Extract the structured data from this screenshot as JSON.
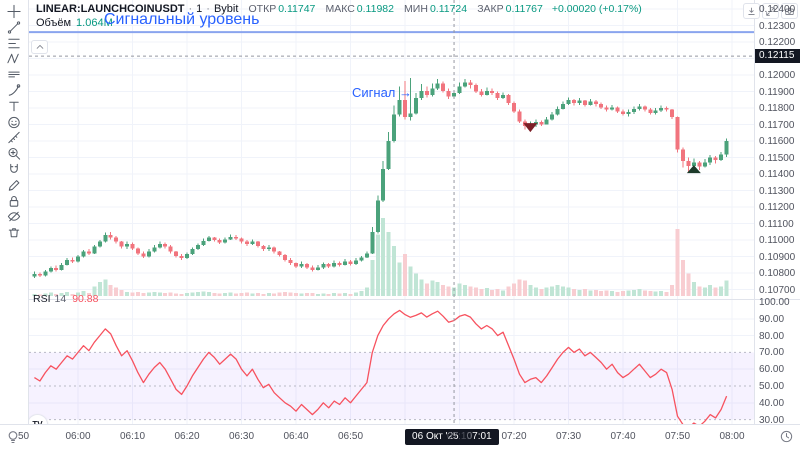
{
  "header": {
    "symbol": "LINEAR:LAUNCHCOINUSDT",
    "interval": "1",
    "exchange": "Bybit",
    "dot": "·",
    "o_label": "ОТКР",
    "o": "0.11747",
    "h_label": "МАКС",
    "h": "0.11982",
    "l_label": "МИН",
    "l": "0.11724",
    "c_label": "ЗАКР",
    "c": "0.11767",
    "change": "+0.00020 (+0.17%)"
  },
  "volume_row": {
    "label": "Объём",
    "value": "1.064M"
  },
  "rsi_row": {
    "label": "RSI",
    "period": "14",
    "value": "90.88"
  },
  "annotations": {
    "level_text": "Сигнальный уровень",
    "signal_text": "Сигнал →"
  },
  "watermark": {
    "text": "TV"
  },
  "sidebar": {
    "tools": [
      {
        "name": "crosshair"
      },
      {
        "name": "trend-line"
      },
      {
        "name": "fib-retracement"
      },
      {
        "name": "xabcd-pattern"
      },
      {
        "name": "long-position"
      },
      {
        "name": "brush"
      },
      {
        "name": "text"
      },
      {
        "name": "emoji"
      },
      {
        "name": "measure"
      },
      {
        "name": "zoom-in"
      },
      {
        "name": "magnet"
      },
      {
        "name": "drawing-mode"
      },
      {
        "name": "lock-all-drawings"
      },
      {
        "name": "hide-all-drawings"
      },
      {
        "name": "remove-all-drawings"
      }
    ]
  },
  "pane_buttons": [
    {
      "name": "pane-down"
    },
    {
      "name": "pane-maximize"
    },
    {
      "name": "pane-screenshot"
    }
  ],
  "price_axis": {
    "ticks": [
      "0.12400",
      "0.12300",
      "0.12200",
      "0.12000",
      "0.11900",
      "0.11800",
      "0.11700",
      "0.11600",
      "0.11500",
      "0.11400",
      "0.11300",
      "0.11200",
      "0.11100",
      "0.11000",
      "0.10900",
      "0.10800",
      "0.10700"
    ],
    "crosshair_label": "0.12115"
  },
  "rsi_axis": {
    "ticks": [
      "100.00",
      "90.00",
      "80.00",
      "70.00",
      "60.00",
      "50.00",
      "40.00",
      "30.00"
    ]
  },
  "time_axis": {
    "labels": [
      {
        "text": "50",
        "m": -10
      },
      {
        "text": "06:00",
        "m": 0
      },
      {
        "text": "06:10",
        "m": 10
      },
      {
        "text": "06:20",
        "m": 20
      },
      {
        "text": "06:30",
        "m": 30
      },
      {
        "text": "06:40",
        "m": 40
      },
      {
        "text": "06:50",
        "m": 50
      },
      {
        "text": "07:10",
        "m": 70
      },
      {
        "text": "07:20",
        "m": 80
      },
      {
        "text": "07:30",
        "m": 90
      },
      {
        "text": "07:40",
        "m": 100
      },
      {
        "text": "07:50",
        "m": 110
      },
      {
        "text": "08:00",
        "m": 120
      }
    ],
    "crosshair_date": "06 Окт '25",
    "crosshair_time": "07:01"
  },
  "colors": {
    "up": "#4ba27b",
    "down": "#f1747e",
    "vol_up": "#c0e5d5",
    "vol_down": "#f8cdd1",
    "accent": "#2962ff",
    "signal_line": "#8aa4ee",
    "rsi_line": "#f7525f",
    "rsi_band": "rgba(124,77,255,0.07)",
    "badge": "#131722",
    "axis_text": "#50535e",
    "grid": "#f0f3fa",
    "crosshair": "#9598a1",
    "header_green": "#089981",
    "sell_marker": "#7c1f27",
    "buy_marker": "#1d3b2a"
  },
  "chart_data": {
    "type": "candlestick",
    "interval": "1m",
    "start_time": "05:52",
    "end_time": "07:59",
    "open_policy": "previous_close",
    "first_open": 0.1078,
    "price_axis_range": [
      0.107,
      0.124
    ],
    "signal_level": 0.1226,
    "crosshair": {
      "date": "06 Окт '25",
      "time": "07:01",
      "minute_index": 69,
      "price": 0.12115,
      "rsi": 90.88,
      "volume_m": 1.064
    },
    "close": [
      0.10795,
      0.10785,
      0.1081,
      0.1083,
      0.1082,
      0.1085,
      0.1088,
      0.1087,
      0.109,
      0.1093,
      0.1092,
      0.1096,
      0.1099,
      0.1103,
      0.11015,
      0.1099,
      0.1096,
      0.10975,
      0.1095,
      0.1092,
      0.109,
      0.1093,
      0.10955,
      0.10975,
      0.1096,
      0.1093,
      0.10905,
      0.1089,
      0.10915,
      0.10945,
      0.1097,
      0.10995,
      0.11015,
      0.11,
      0.10985,
      0.11005,
      0.1102,
      0.1101,
      0.1099,
      0.10975,
      0.1099,
      0.10965,
      0.10945,
      0.10955,
      0.1093,
      0.1091,
      0.1088,
      0.1086,
      0.1084,
      0.10855,
      0.10835,
      0.1082,
      0.10835,
      0.10855,
      0.1084,
      0.1086,
      0.1085,
      0.1087,
      0.10855,
      0.10875,
      0.10895,
      0.1092,
      0.1105,
      0.1124,
      0.1143,
      0.116,
      0.1176,
      0.1185,
      0.11747,
      0.11767,
      0.1186,
      0.11905,
      0.1188,
      0.1192,
      0.1195,
      0.11905,
      0.1187,
      0.1189,
      0.1193,
      0.11955,
      0.1194,
      0.119,
      0.1188,
      0.11905,
      0.1189,
      0.1186,
      0.1188,
      0.1183,
      0.1178,
      0.1172,
      0.1169,
      0.117,
      0.11715,
      0.117,
      0.1173,
      0.1176,
      0.11795,
      0.11825,
      0.1185,
      0.1183,
      0.11845,
      0.1182,
      0.1184,
      0.11825,
      0.11805,
      0.1179,
      0.11805,
      0.1178,
      0.11765,
      0.11775,
      0.11795,
      0.1181,
      0.1179,
      0.1177,
      0.11785,
      0.118,
      0.1179,
      0.11745,
      0.1155,
      0.1148,
      0.1145,
      0.1147,
      0.11445,
      0.1147,
      0.115,
      0.11485,
      0.1152,
      0.116
    ],
    "high": [
      0.1081,
      0.10805,
      0.1082,
      0.1084,
      0.10845,
      0.1086,
      0.1089,
      0.10895,
      0.1091,
      0.1094,
      0.10945,
      0.1097,
      0.11,
      0.11045,
      0.1105,
      0.11025,
      0.10995,
      0.1099,
      0.10985,
      0.10955,
      0.1093,
      0.10945,
      0.1097,
      0.1099,
      0.10985,
      0.1097,
      0.10935,
      0.10915,
      0.10925,
      0.10955,
      0.1098,
      0.1101,
      0.11025,
      0.1102,
      0.1101,
      0.11015,
      0.11035,
      0.1103,
      0.11015,
      0.11,
      0.11005,
      0.10995,
      0.1097,
      0.1097,
      0.1096,
      0.10935,
      0.10915,
      0.1089,
      0.10865,
      0.1087,
      0.1086,
      0.10845,
      0.1085,
      0.10865,
      0.1086,
      0.10875,
      0.1087,
      0.10885,
      0.1088,
      0.1089,
      0.10905,
      0.1093,
      0.1108,
      0.1127,
      0.1148,
      0.11655,
      0.11815,
      0.1193,
      0.11965,
      0.11982,
      0.1189,
      0.11945,
      0.1193,
      0.1195,
      0.11975,
      0.1196,
      0.1192,
      0.1191,
      0.11955,
      0.11975,
      0.1197,
      0.1195,
      0.11915,
      0.11925,
      0.1192,
      0.119,
      0.11895,
      0.11885,
      0.1184,
      0.1179,
      0.1173,
      0.1172,
      0.1173,
      0.11725,
      0.11745,
      0.11775,
      0.1181,
      0.1184,
      0.11865,
      0.11855,
      0.1186,
      0.1185,
      0.11855,
      0.1185,
      0.11835,
      0.11815,
      0.1182,
      0.1181,
      0.1179,
      0.1179,
      0.1181,
      0.11825,
      0.11815,
      0.118,
      0.118,
      0.11815,
      0.1181,
      0.11795,
      0.1175,
      0.1156,
      0.115,
      0.11495,
      0.1148,
      0.1149,
      0.11515,
      0.1151,
      0.11535,
      0.11615
    ],
    "low": [
      0.1077,
      0.10775,
      0.1078,
      0.10805,
      0.1081,
      0.10815,
      0.10845,
      0.1086,
      0.10865,
      0.10895,
      0.1091,
      0.10915,
      0.10955,
      0.10985,
      0.11005,
      0.1098,
      0.1095,
      0.10945,
      0.1094,
      0.1091,
      0.1089,
      0.10895,
      0.10925,
      0.1095,
      0.1095,
      0.1092,
      0.10895,
      0.1088,
      0.10885,
      0.1091,
      0.1094,
      0.10965,
      0.1099,
      0.1099,
      0.10975,
      0.1098,
      0.11,
      0.11,
      0.1098,
      0.10965,
      0.1097,
      0.10955,
      0.10935,
      0.10935,
      0.1092,
      0.109,
      0.1087,
      0.1085,
      0.1083,
      0.1083,
      0.10825,
      0.1081,
      0.10815,
      0.10825,
      0.1083,
      0.10835,
      0.1084,
      0.10845,
      0.10845,
      0.1085,
      0.1087,
      0.1089,
      0.10915,
      0.1104,
      0.1123,
      0.11425,
      0.1159,
      0.1175,
      0.1173,
      0.11724,
      0.1176,
      0.1185,
      0.11865,
      0.1187,
      0.1191,
      0.11895,
      0.11855,
      0.1186,
      0.11885,
      0.11925,
      0.1192,
      0.1189,
      0.1187,
      0.11875,
      0.1188,
      0.1185,
      0.11855,
      0.1182,
      0.1177,
      0.1171,
      0.1167,
      0.1166,
      0.11685,
      0.1169,
      0.117,
      0.11725,
      0.11755,
      0.1179,
      0.1182,
      0.11815,
      0.1182,
      0.1181,
      0.11815,
      0.1181,
      0.11795,
      0.1178,
      0.11785,
      0.1177,
      0.11755,
      0.1175,
      0.11765,
      0.11785,
      0.1178,
      0.1176,
      0.1176,
      0.11775,
      0.1178,
      0.11735,
      0.1153,
      0.1144,
      0.1141,
      0.1143,
      0.11425,
      0.1144,
      0.11455,
      0.11465,
      0.1148,
      0.11505
    ],
    "volume_m": [
      0.08,
      0.06,
      0.09,
      0.12,
      0.07,
      0.1,
      0.14,
      0.08,
      0.12,
      0.18,
      0.1,
      0.35,
      0.5,
      0.6,
      0.4,
      0.3,
      0.22,
      0.15,
      0.12,
      0.14,
      0.1,
      0.12,
      0.15,
      0.13,
      0.1,
      0.12,
      0.09,
      0.08,
      0.1,
      0.12,
      0.14,
      0.16,
      0.14,
      0.1,
      0.09,
      0.11,
      0.13,
      0.09,
      0.1,
      0.12,
      0.09,
      0.11,
      0.08,
      0.1,
      0.09,
      0.12,
      0.15,
      0.13,
      0.1,
      0.09,
      0.11,
      0.1,
      0.08,
      0.09,
      0.07,
      0.1,
      0.09,
      0.11,
      0.08,
      0.12,
      0.18,
      0.3,
      1.3,
      2.2,
      2.8,
      2.3,
      1.8,
      1.2,
      1.5,
      1.064,
      0.8,
      0.6,
      0.45,
      0.55,
      0.5,
      0.4,
      0.35,
      0.3,
      0.45,
      0.4,
      0.35,
      0.3,
      0.25,
      0.28,
      0.22,
      0.25,
      0.2,
      0.35,
      0.45,
      0.6,
      0.55,
      0.4,
      0.3,
      0.25,
      0.3,
      0.35,
      0.4,
      0.35,
      0.3,
      0.25,
      0.22,
      0.25,
      0.2,
      0.22,
      0.18,
      0.2,
      0.18,
      0.15,
      0.18,
      0.2,
      0.22,
      0.25,
      0.2,
      0.18,
      0.16,
      0.18,
      0.15,
      0.4,
      2.4,
      1.3,
      0.8,
      0.5,
      0.35,
      0.3,
      0.4,
      0.3,
      0.35,
      0.55
    ],
    "rsi": [
      55,
      53,
      58,
      62,
      60,
      64,
      68,
      66,
      70,
      74,
      71,
      76,
      80,
      84,
      81,
      74,
      68,
      71,
      65,
      58,
      52,
      57,
      61,
      64,
      60,
      54,
      48,
      45,
      50,
      56,
      61,
      66,
      70,
      67,
      63,
      66,
      69,
      66,
      60,
      56,
      60,
      54,
      49,
      51,
      46,
      43,
      40,
      38,
      35,
      39,
      36,
      33,
      36,
      40,
      37,
      41,
      39,
      43,
      40,
      44,
      48,
      52,
      70,
      80,
      86,
      90,
      93,
      95,
      92.5,
      90.88,
      92,
      93.5,
      91,
      93,
      94.5,
      91.5,
      88,
      89,
      91.5,
      92.5,
      91,
      87,
      84,
      86,
      84,
      80,
      82,
      74,
      66,
      57,
      52,
      54,
      55,
      52,
      56,
      61,
      66,
      70,
      73,
      70,
      72,
      68,
      70,
      67,
      64,
      60,
      63,
      58,
      55,
      57,
      60,
      63,
      59,
      55,
      57,
      60,
      58,
      48,
      32,
      27,
      25,
      28,
      26,
      29,
      33,
      31,
      36,
      44
    ],
    "rsi_levels": [
      70,
      50,
      30
    ],
    "markers": [
      {
        "type": "sell",
        "minute_index": 91,
        "time": "07:23",
        "price": 0.1166
      },
      {
        "type": "buy",
        "minute_index": 121,
        "time": "07:53",
        "price": 0.1143
      }
    ]
  }
}
